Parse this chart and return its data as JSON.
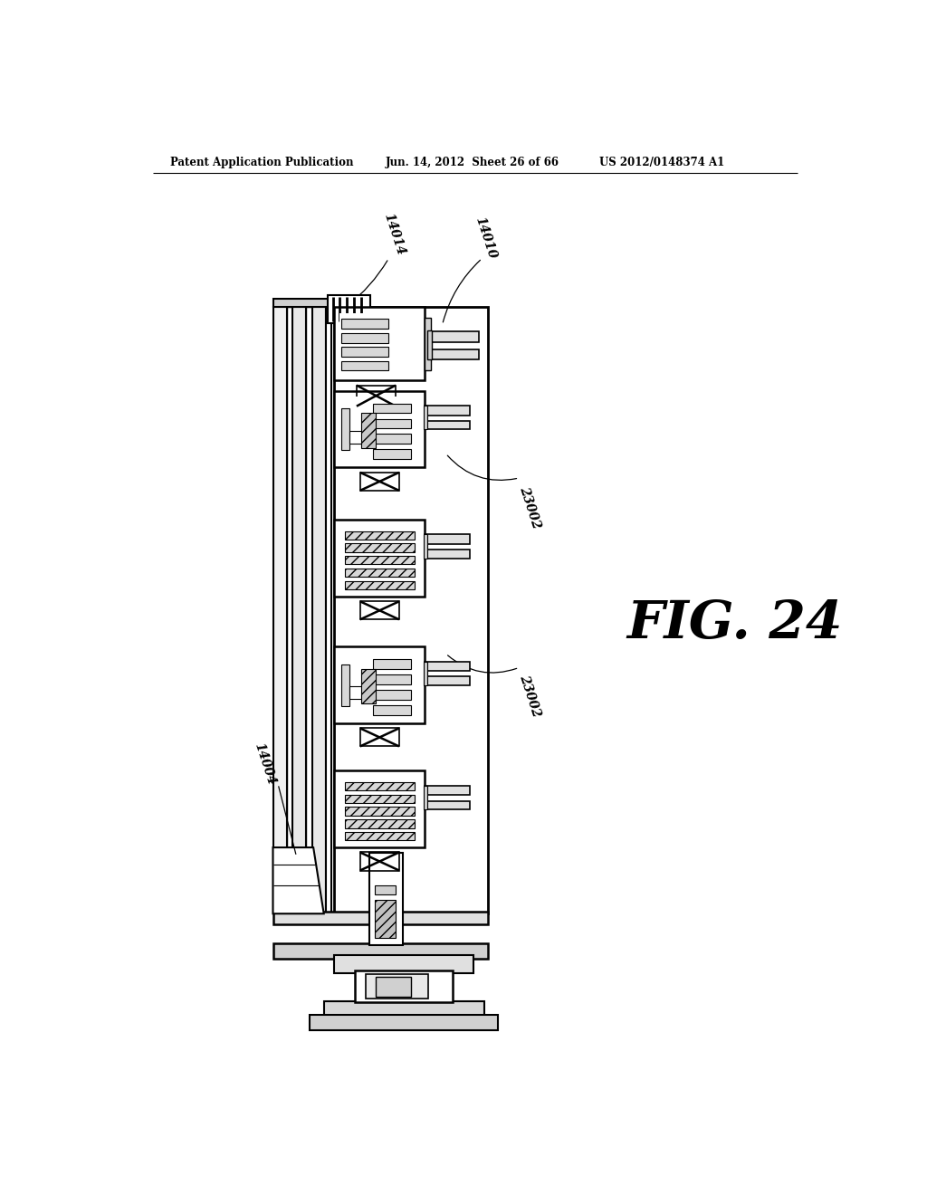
{
  "bg_color": "#ffffff",
  "header_left": "Patent Application Publication",
  "header_mid": "Jun. 14, 2012  Sheet 26 of 66",
  "header_right": "US 2012/0148374 A1",
  "fig_label": "FIG. 24"
}
